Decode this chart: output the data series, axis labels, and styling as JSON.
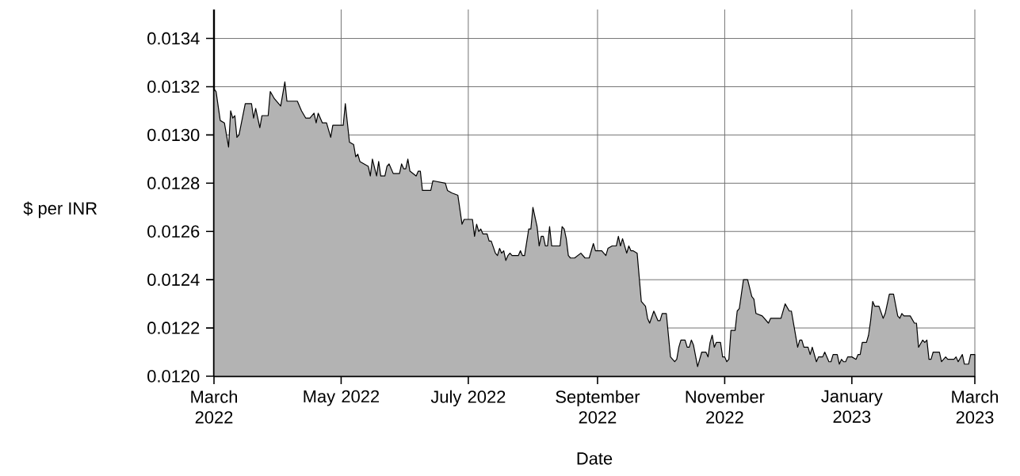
{
  "chart_data": {
    "type": "area",
    "xlabel": "Date",
    "ylabel": "$ per INR",
    "grid": true,
    "xlim": [
      "2022-03-01",
      "2023-03-01"
    ],
    "ylim": [
      0.012,
      0.01352
    ],
    "xticks": [
      {
        "value": "2022-03-01",
        "label": "March 2022"
      },
      {
        "value": "2022-05-01",
        "label": "May 2022"
      },
      {
        "value": "2022-07-01",
        "label": "July 2022"
      },
      {
        "value": "2022-09-01",
        "label": "September 2022"
      },
      {
        "value": "2022-11-01",
        "label": "November 2022"
      },
      {
        "value": "2023-01-01",
        "label": "January 2023"
      },
      {
        "value": "2023-03-01",
        "label": "March 2023"
      }
    ],
    "yticks": [
      {
        "value": 0.012,
        "label": "0.0120"
      },
      0.0122,
      0.0124,
      0.0126,
      0.0128,
      {
        "value": 0.013,
        "label": "0.0130"
      },
      0.0132,
      0.0134
    ],
    "series": [
      {
        "color": "#b3b3b3",
        "x": [
          "2022-03-01",
          "2022-03-02",
          "2022-03-04",
          "2022-03-06",
          "2022-03-08",
          "2022-03-09",
          "2022-03-10",
          "2022-03-11",
          "2022-03-12",
          "2022-03-13",
          "2022-03-16",
          "2022-03-19",
          "2022-03-20",
          "2022-03-21",
          "2022-03-23",
          "2022-03-24",
          "2022-03-27",
          "2022-03-28",
          "2022-03-30",
          "2022-04-02",
          "2022-04-04",
          "2022-04-05",
          "2022-04-10",
          "2022-04-12",
          "2022-04-14",
          "2022-04-16",
          "2022-04-18",
          "2022-04-19",
          "2022-04-20",
          "2022-04-22",
          "2022-04-24",
          "2022-04-26",
          "2022-04-27",
          "2022-05-02",
          "2022-05-03",
          "2022-05-05",
          "2022-05-07",
          "2022-05-08",
          "2022-05-09",
          "2022-05-10",
          "2022-05-12",
          "2022-05-14",
          "2022-05-15",
          "2022-05-16",
          "2022-05-18",
          "2022-05-19",
          "2022-05-20",
          "2022-05-22",
          "2022-05-23",
          "2022-05-24",
          "2022-05-26",
          "2022-05-29",
          "2022-05-30",
          "2022-05-31",
          "2022-06-01",
          "2022-06-02",
          "2022-06-03",
          "2022-06-06",
          "2022-06-07",
          "2022-06-08",
          "2022-06-09",
          "2022-06-13",
          "2022-06-14",
          "2022-06-20",
          "2022-06-21",
          "2022-06-23",
          "2022-06-26",
          "2022-06-28",
          "2022-06-29",
          "2022-07-03",
          "2022-07-04",
          "2022-07-05",
          "2022-07-06",
          "2022-07-07",
          "2022-07-08",
          "2022-07-10",
          "2022-07-11",
          "2022-07-12",
          "2022-07-14",
          "2022-07-15",
          "2022-07-16",
          "2022-07-17",
          "2022-07-18",
          "2022-07-19",
          "2022-07-20",
          "2022-07-21",
          "2022-07-22",
          "2022-07-25",
          "2022-07-26",
          "2022-07-27",
          "2022-07-28",
          "2022-07-30",
          "2022-07-31",
          "2022-08-01",
          "2022-08-03",
          "2022-08-04",
          "2022-08-05",
          "2022-08-06",
          "2022-08-07",
          "2022-08-08",
          "2022-08-09",
          "2022-08-10",
          "2022-08-14",
          "2022-08-15",
          "2022-08-16",
          "2022-08-17",
          "2022-08-18",
          "2022-08-19",
          "2022-08-21",
          "2022-08-24",
          "2022-08-26",
          "2022-08-28",
          "2022-08-30",
          "2022-08-31",
          "2022-09-03",
          "2022-09-05",
          "2022-09-06",
          "2022-09-08",
          "2022-09-10",
          "2022-09-11",
          "2022-09-12",
          "2022-09-13",
          "2022-09-15",
          "2022-09-16",
          "2022-09-17",
          "2022-09-18",
          "2022-09-20",
          "2022-09-22",
          "2022-09-24",
          "2022-09-25",
          "2022-09-26",
          "2022-09-28",
          "2022-09-30",
          "2022-10-01",
          "2022-10-02",
          "2022-10-04",
          "2022-10-06",
          "2022-10-08",
          "2022-10-09",
          "2022-10-10",
          "2022-10-11",
          "2022-10-13",
          "2022-10-14",
          "2022-10-15",
          "2022-10-16",
          "2022-10-17",
          "2022-10-19",
          "2022-10-21",
          "2022-10-23",
          "2022-10-24",
          "2022-10-25",
          "2022-10-26",
          "2022-10-27",
          "2022-10-28",
          "2022-10-30",
          "2022-10-31",
          "2022-11-01",
          "2022-11-02",
          "2022-11-03",
          "2022-11-04",
          "2022-11-06",
          "2022-11-07",
          "2022-11-08",
          "2022-11-10",
          "2022-11-12",
          "2022-11-14",
          "2022-11-15",
          "2022-11-16",
          "2022-11-19",
          "2022-11-22",
          "2022-11-23",
          "2022-11-28",
          "2022-11-30",
          "2022-12-02",
          "2022-12-03",
          "2022-12-06",
          "2022-12-07",
          "2022-12-08",
          "2022-12-09",
          "2022-12-11",
          "2022-12-12",
          "2022-12-13",
          "2022-12-15",
          "2022-12-16",
          "2022-12-18",
          "2022-12-19",
          "2022-12-20",
          "2022-12-21",
          "2022-12-22",
          "2022-12-23",
          "2022-12-25",
          "2022-12-26",
          "2022-12-27",
          "2022-12-28",
          "2022-12-29",
          "2022-12-30",
          "2023-01-01",
          "2023-01-03",
          "2023-01-04",
          "2023-01-05",
          "2023-01-06",
          "2023-01-08",
          "2023-01-09",
          "2023-01-10",
          "2023-01-11",
          "2023-01-12",
          "2023-01-14",
          "2023-01-16",
          "2023-01-17",
          "2023-01-19",
          "2023-01-21",
          "2023-01-23",
          "2023-01-24",
          "2023-01-25",
          "2023-01-26",
          "2023-01-29",
          "2023-01-31",
          "2023-02-01",
          "2023-02-02",
          "2023-02-04",
          "2023-02-05",
          "2023-02-06",
          "2023-02-07",
          "2023-02-08",
          "2023-02-09",
          "2023-02-12",
          "2023-02-13",
          "2023-02-15",
          "2023-02-16",
          "2023-02-19",
          "2023-02-20",
          "2023-02-21",
          "2023-02-23",
          "2023-02-24",
          "2023-02-26",
          "2023-02-27",
          "2023-03-01"
        ],
        "values": [
          0.01319,
          0.01318,
          0.01306,
          0.01305,
          0.01295,
          0.0131,
          0.01307,
          0.01308,
          0.01299,
          0.013,
          0.01313,
          0.01313,
          0.01307,
          0.01311,
          0.01303,
          0.01308,
          0.01308,
          0.01318,
          0.01315,
          0.01312,
          0.01322,
          0.01314,
          0.01314,
          0.0131,
          0.01307,
          0.01307,
          0.01309,
          0.01305,
          0.01309,
          0.01305,
          0.01305,
          0.01299,
          0.01304,
          0.01304,
          0.01313,
          0.01297,
          0.01296,
          0.01291,
          0.01292,
          0.01289,
          0.01288,
          0.01287,
          0.01283,
          0.0129,
          0.01283,
          0.01289,
          0.01283,
          0.01283,
          0.01287,
          0.01288,
          0.01284,
          0.01284,
          0.01288,
          0.01286,
          0.01286,
          0.0129,
          0.01285,
          0.01283,
          0.01285,
          0.01285,
          0.01277,
          0.01277,
          0.01281,
          0.0128,
          0.01277,
          0.01276,
          0.01275,
          0.01263,
          0.01265,
          0.01265,
          0.01258,
          0.01263,
          0.0126,
          0.01261,
          0.01259,
          0.01259,
          0.01256,
          0.01256,
          0.01251,
          0.0125,
          0.01253,
          0.01251,
          0.01252,
          0.01248,
          0.0125,
          0.01251,
          0.0125,
          0.0125,
          0.01252,
          0.0125,
          0.0125,
          0.01261,
          0.01261,
          0.0127,
          0.01262,
          0.01254,
          0.01258,
          0.01258,
          0.01254,
          0.01254,
          0.01262,
          0.01254,
          0.01254,
          0.01262,
          0.01261,
          0.01257,
          0.0125,
          0.01249,
          0.01249,
          0.01251,
          0.01249,
          0.01249,
          0.01255,
          0.01252,
          0.01252,
          0.0125,
          0.01253,
          0.01254,
          0.01254,
          0.01258,
          0.01254,
          0.01257,
          0.01251,
          0.01254,
          0.01252,
          0.01252,
          0.01251,
          0.01231,
          0.01229,
          0.01224,
          0.01222,
          0.01227,
          0.01223,
          0.01223,
          0.01226,
          0.01226,
          0.01208,
          0.01206,
          0.01207,
          0.01212,
          0.01215,
          0.01215,
          0.01212,
          0.01212,
          0.01215,
          0.01213,
          0.01204,
          0.0121,
          0.0121,
          0.01208,
          0.01214,
          0.01217,
          0.01212,
          0.01214,
          0.01214,
          0.01208,
          0.01208,
          0.01206,
          0.01207,
          0.01219,
          0.01219,
          0.01227,
          0.01228,
          0.0124,
          0.0124,
          0.01233,
          0.01232,
          0.01226,
          0.01225,
          0.01222,
          0.01224,
          0.01224,
          0.0123,
          0.01227,
          0.01227,
          0.01212,
          0.01215,
          0.01215,
          0.01212,
          0.01212,
          0.01209,
          0.01212,
          0.01206,
          0.01208,
          0.01208,
          0.0121,
          0.01208,
          0.01206,
          0.01206,
          0.01209,
          0.01209,
          0.01205,
          0.01207,
          0.01206,
          0.01206,
          0.01208,
          0.01208,
          0.01207,
          0.01209,
          0.01209,
          0.01214,
          0.01214,
          0.01217,
          0.01223,
          0.01231,
          0.01229,
          0.01229,
          0.01224,
          0.01226,
          0.01234,
          0.01234,
          0.01225,
          0.01224,
          0.01226,
          0.01225,
          0.01225,
          0.01222,
          0.01222,
          0.01212,
          0.01215,
          0.01214,
          0.01215,
          0.01207,
          0.01207,
          0.0121,
          0.0121,
          0.01206,
          0.01208,
          0.01207,
          0.01207,
          0.01208,
          0.01206,
          0.01209,
          0.01205,
          0.01205,
          0.01209,
          0.01209
        ]
      }
    ]
  }
}
